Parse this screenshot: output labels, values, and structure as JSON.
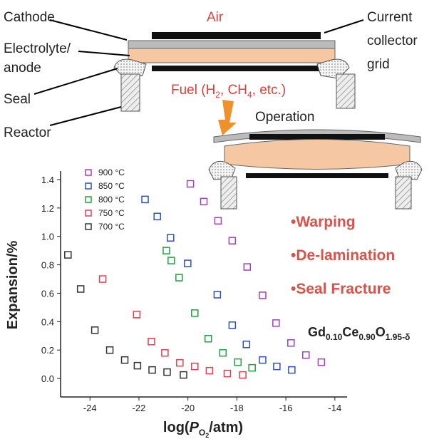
{
  "diagram": {
    "cathode": "Cathode",
    "electrolyte": [
      "Electrolyte/",
      "anode"
    ],
    "seal": "Seal",
    "reactor": "Reactor",
    "air": "Air",
    "collector": [
      "Current",
      "collector",
      "grid"
    ],
    "fuel": [
      "Fuel (H",
      "2",
      ", CH",
      "4",
      ", etc.)"
    ],
    "operation": "Operation"
  },
  "chart_data": {
    "type": "scatter",
    "y_label": "Expansion/%",
    "x_label": [
      "log(",
      "P",
      "O",
      "2",
      "/atm)"
    ],
    "xlim": [
      -25.2,
      -13.5
    ],
    "xticks": [
      -24,
      -22,
      -20,
      -18,
      -16,
      -14
    ],
    "ylim": [
      -0.13,
      1.46
    ],
    "yticks": [
      {
        "value": 0,
        "label": "0.0"
      },
      0.2,
      0.4,
      0.6,
      0.8,
      {
        "value": 1,
        "label": "1.0"
      },
      1.2,
      1.4
    ],
    "legend": "upper left",
    "annotations": [
      "•Warping",
      "•De-lamination",
      "•Seal Fracture"
    ],
    "formula": [
      "Gd",
      "0.10",
      "Ce",
      "0.90",
      "O",
      "1.95-δ"
    ],
    "series": [
      {
        "name": "900 °C",
        "color": "#a040c0",
        "x": [
          -19.9,
          -19.35,
          -18.77,
          -18.19,
          -17.58,
          -16.95,
          -16.4,
          -15.79,
          -15.18,
          -14.55
        ],
        "values": [
          1.37,
          1.245,
          1.11,
          0.97,
          0.785,
          0.585,
          0.39,
          0.25,
          0.165,
          0.115
        ]
      },
      {
        "name": "850 °C",
        "color": "#3050c0",
        "x": [
          -21.75,
          -21.25,
          -20.71,
          -20.01,
          -18.8,
          -18.19,
          -17.61,
          -16.95,
          -16.37,
          -15.76
        ],
        "values": [
          1.26,
          1.14,
          0.99,
          0.81,
          0.59,
          0.375,
          0.24,
          0.13,
          0.085,
          0.06
        ]
      },
      {
        "name": "800 °C",
        "color": "#20a040",
        "x": [
          -20.88,
          -20.68,
          -20.36,
          -19.72,
          -19.17,
          -18.57,
          -17.96,
          -17.38
        ],
        "values": [
          0.9,
          0.83,
          0.71,
          0.46,
          0.28,
          0.18,
          0.115,
          0.075
        ]
      },
      {
        "name": "750 °C",
        "color": "#e04050",
        "x": [
          -23.48,
          -22.09,
          -21.49,
          -20.94,
          -20.33,
          -19.72,
          -19.12,
          -18.39,
          -17.76
        ],
        "values": [
          0.7,
          0.45,
          0.26,
          0.18,
          0.11,
          0.085,
          0.055,
          0.035,
          0.025
        ]
      },
      {
        "name": "700 °C",
        "color": "#333333",
        "x": [
          -24.9,
          -24.38,
          -23.8,
          -23.19,
          -22.58,
          -22.06,
          -21.46,
          -20.85,
          -20.18
        ],
        "values": [
          0.87,
          0.63,
          0.34,
          0.2,
          0.13,
          0.09,
          0.06,
          0.045,
          0.025
        ]
      }
    ]
  }
}
